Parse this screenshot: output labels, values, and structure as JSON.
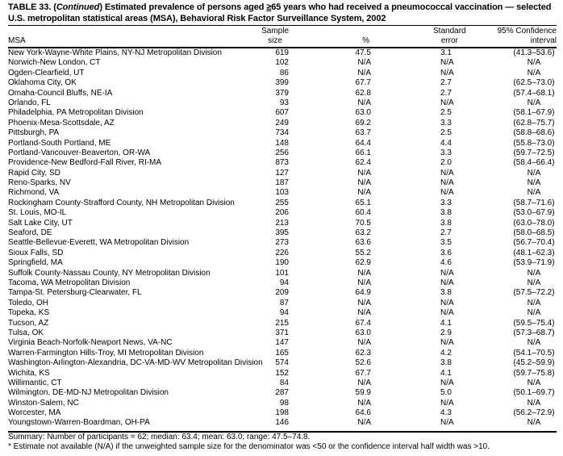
{
  "title": {
    "prefix": "TABLE 33. (",
    "continued": "Continued",
    "middle": ") Estimated prevalence of persons aged ",
    "ge": "≥",
    "rest": "65 years who had received a pneumococcal vaccination — selected U.S. metropolitan statistical areas (MSA), Behavioral Risk Factor Surveillance System, 2002"
  },
  "headers": {
    "msa": "MSA",
    "sample_1": "Sample",
    "sample_2": "size",
    "pct": "%",
    "se_1": "Standard",
    "se_2": "error",
    "ci_1": "95% Confidence",
    "ci_2": "interval"
  },
  "rows": [
    [
      "New York-Wayne-White Plains, NY-NJ Metropolitan Division",
      "619",
      "47.5",
      "3.1",
      "(41.3–53.6)"
    ],
    [
      "Norwich-New London, CT",
      "102",
      "N/A",
      "N/A",
      "N/A"
    ],
    [
      "Ogden-Clearfield, UT",
      "86",
      "N/A",
      "N/A",
      "N/A"
    ],
    [
      "Oklahoma City, OK",
      "399",
      "67.7",
      "2.7",
      "(62.5–73.0)"
    ],
    [
      "Omaha-Council Bluffs, NE-IA",
      "379",
      "62.8",
      "2.7",
      "(57.4–68.1)"
    ],
    [
      "Orlando, FL",
      "93",
      "N/A",
      "N/A",
      "N/A"
    ],
    [
      "Philadelphia, PA Metropolitan Division",
      "607",
      "63.0",
      "2.5",
      "(58.1–67.9)"
    ],
    [
      "Phoenix-Mesa-Scottsdale, AZ",
      "249",
      "69.2",
      "3.3",
      "(62.8–75.7)"
    ],
    [
      "Pittsburgh, PA",
      "734",
      "63.7",
      "2.5",
      "(58.8–68.6)"
    ],
    [
      "Portland-South Portland, ME",
      "148",
      "64.4",
      "4.4",
      "(55.8–73.0)"
    ],
    [
      "Portland-Vancouver-Beaverton, OR-WA",
      "256",
      "66.1",
      "3.3",
      "(59.7–72.5)"
    ],
    [
      "Providence-New Bedford-Fall River, RI-MA",
      "873",
      "62.4",
      "2.0",
      "(58.4–66.4)"
    ],
    [
      "Rapid City, SD",
      "127",
      "N/A",
      "N/A",
      "N/A"
    ],
    [
      "Reno-Sparks, NV",
      "187",
      "N/A",
      "N/A",
      "N/A"
    ],
    [
      "Richmond, VA",
      "103",
      "N/A",
      "N/A",
      "N/A"
    ],
    [
      "Rockingham County-Strafford County, NH Metropolitan Division",
      "255",
      "65.1",
      "3.3",
      "(58.7–71.6)"
    ],
    [
      "St. Louis, MO-IL",
      "206",
      "60.4",
      "3.8",
      "(53.0–67.9)"
    ],
    [
      "Salt Lake City, UT",
      "213",
      "70.5",
      "3.8",
      "(63.0–78.0)"
    ],
    [
      "Seaford, DE",
      "395",
      "63.2",
      "2.7",
      "(58.0–68.5)"
    ],
    [
      "Seattle-Bellevue-Everett, WA Metropolitan Division",
      "273",
      "63.6",
      "3.5",
      "(56.7–70.4)"
    ],
    [
      "Sioux Falls, SD",
      "226",
      "55.2",
      "3.6",
      "(48.1–62.3)"
    ],
    [
      "Springfield, MA",
      "190",
      "62.9",
      "4.6",
      "(53.9–71.9)"
    ],
    [
      "Suffolk County-Nassau County, NY Metropolitan Division",
      "101",
      "N/A",
      "N/A",
      "N/A"
    ],
    [
      "Tacoma, WA Metropolitan Division",
      "94",
      "N/A",
      "N/A",
      "N/A"
    ],
    [
      "Tampa-St. Petersburg-Clearwater, FL",
      "209",
      "64.9",
      "3.8",
      "(57.5–72.2)"
    ],
    [
      "Toledo, OH",
      "87",
      "N/A",
      "N/A",
      "N/A"
    ],
    [
      "Topeka, KS",
      "94",
      "N/A",
      "N/A",
      "N/A"
    ],
    [
      "Tucson, AZ",
      "215",
      "67.4",
      "4.1",
      "(59.5–75.4)"
    ],
    [
      "Tulsa, OK",
      "371",
      "63.0",
      "2.9",
      "(57.3–68.7)"
    ],
    [
      "Virginia Beach-Norfolk-Newport News, VA-NC",
      "147",
      "N/A",
      "N/A",
      "N/A"
    ],
    [
      "Warren-Farmington Hills-Troy, MI Metropolitan Division",
      "165",
      "62.3",
      "4.2",
      "(54.1–70.5)"
    ],
    [
      "Washington-Arlington-Alexandria, DC-VA-MD-WV Metropolitan Division",
      "574",
      "52.6",
      "3.8",
      "(45.2–59.9)"
    ],
    [
      "Wichita, KS",
      "152",
      "67.7",
      "4.1",
      "(59.7–75.8)"
    ],
    [
      "Willimantic, CT",
      "84",
      "N/A",
      "N/A",
      "N/A"
    ],
    [
      "Wilmington, DE-MD-NJ Metropolitan Division",
      "287",
      "59.9",
      "5.0",
      "(50.1–69.7)"
    ],
    [
      "Winston-Salem, NC",
      "98",
      "N/A",
      "N/A",
      "N/A"
    ],
    [
      "Worcester, MA",
      "198",
      "64.6",
      "4.3",
      "(56.2–72.9)"
    ],
    [
      "Youngstown-Warren-Boardman, OH-PA",
      "146",
      "N/A",
      "N/A",
      "N/A"
    ]
  ],
  "summary": "Summary: Number of participants = 62; median: 63.4; mean: 63.0; range: 47.5–74.8.",
  "footnote": "* Estimate not available (N/A) if the unweighted sample size for the denominator was <50 or the confidence interval half width was >10."
}
